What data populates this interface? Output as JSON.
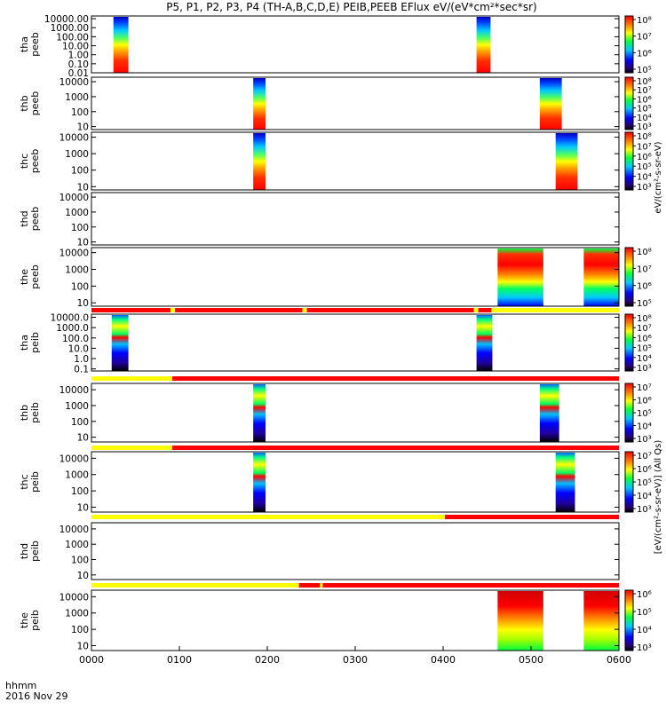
{
  "title": "P5, P1, P2, P3, P4 (TH-A,B,C,D,E) PEIB,PEEB EFlux eV/(eV*cm²*sec*sr)",
  "x_axis": {
    "label_line1": "hhmm",
    "label_line2": "2016 Nov 29",
    "ticks": [
      "0000",
      "0100",
      "0200",
      "0300",
      "0400",
      "0500",
      "0600"
    ],
    "range_hours": [
      0,
      6
    ]
  },
  "colors": {
    "red": "#ff0000",
    "yellow": "#ffff00",
    "black": "#000000",
    "white": "#ffffff"
  },
  "colorbar_titles": {
    "electrons": "eV/(cm²-s-sr-eV)",
    "ions": "[eV/(cm²-s-sr-eV)] (All Qs)"
  },
  "panels": [
    {
      "id": "tha-peeb",
      "label_top": "tha",
      "label_bottom": "peeb",
      "yticks": [
        "10000.00",
        "1000.00",
        "100.00",
        "10.00",
        "1.00",
        "0.10",
        "0.01"
      ],
      "ylog": [
        -2,
        4.3
      ],
      "colorbar": {
        "labels": [
          "10⁸",
          "10⁷",
          "10⁶",
          "10⁵"
        ]
      },
      "bursts": [
        {
          "start": 0.25,
          "end": 0.42
        },
        {
          "start": 4.38,
          "end": 4.54
        }
      ],
      "mode_bar": null
    },
    {
      "id": "thb-peeb",
      "label_top": "thb",
      "label_bottom": "peeb",
      "yticks": [
        "10000",
        "1000",
        "100",
        "10"
      ],
      "ylog": [
        0.8,
        4.3
      ],
      "colorbar": {
        "labels": [
          "10⁸",
          "10⁷",
          "10⁶",
          "10⁵",
          "10⁴",
          "10³"
        ]
      },
      "bursts": [
        {
          "start": 1.84,
          "end": 1.98
        },
        {
          "start": 5.1,
          "end": 5.35
        }
      ],
      "mode_bar": null
    },
    {
      "id": "thc-peeb",
      "label_top": "thc",
      "label_bottom": "peeb",
      "yticks": [
        "10000",
        "1000",
        "100",
        "10"
      ],
      "ylog": [
        0.8,
        4.3
      ],
      "colorbar": {
        "labels": [
          "10⁸",
          "10⁷",
          "10⁶",
          "10⁵",
          "10⁴",
          "10³"
        ]
      },
      "bursts": [
        {
          "start": 1.84,
          "end": 1.98
        },
        {
          "start": 5.28,
          "end": 5.53
        }
      ],
      "mode_bar": null
    },
    {
      "id": "thd-peeb",
      "label_top": "thd",
      "label_bottom": "peeb",
      "yticks": [
        "10000",
        "1000",
        "100",
        "10"
      ],
      "ylog": [
        0.8,
        4.3
      ],
      "colorbar": null,
      "bursts": [],
      "mode_bar": null
    },
    {
      "id": "the-peeb",
      "label_top": "the",
      "label_bottom": "peeb",
      "yticks": [
        "10000",
        "1000",
        "100",
        "10"
      ],
      "ylog": [
        0.8,
        4.3
      ],
      "colorbar": {
        "labels": [
          "10⁸",
          "10⁷",
          "10⁶",
          "10⁵"
        ]
      },
      "bursts": [
        {
          "start": 4.62,
          "end": 5.14
        },
        {
          "start": 5.6,
          "end": 6.0
        }
      ],
      "mode_bar": [
        {
          "start": 0.0,
          "end": 0.9,
          "color": "red"
        },
        {
          "start": 0.9,
          "end": 0.95,
          "color": "yellow"
        },
        {
          "start": 0.95,
          "end": 2.4,
          "color": "red"
        },
        {
          "start": 2.4,
          "end": 2.45,
          "color": "yellow"
        },
        {
          "start": 2.45,
          "end": 4.35,
          "color": "red"
        },
        {
          "start": 4.35,
          "end": 4.4,
          "color": "yellow"
        },
        {
          "start": 4.4,
          "end": 4.55,
          "color": "red"
        },
        {
          "start": 4.55,
          "end": 6.0,
          "color": "yellow"
        }
      ]
    },
    {
      "id": "tha-peib",
      "label_top": "tha",
      "label_bottom": "peib",
      "yticks": [
        "10000.0",
        "1000.0",
        "100.0",
        "10.0",
        "1.0",
        "0.1"
      ],
      "ylog": [
        -1.2,
        4.3
      ],
      "colorbar": {
        "labels": [
          "10⁸",
          "10⁷",
          "10⁶",
          "10⁵",
          "10⁴",
          "10³"
        ]
      },
      "bursts": [
        {
          "start": 0.23,
          "end": 0.42
        },
        {
          "start": 4.38,
          "end": 4.56
        }
      ],
      "mode_bar": [
        {
          "start": 0.0,
          "end": 0.92,
          "color": "yellow"
        },
        {
          "start": 0.92,
          "end": 6.0,
          "color": "red"
        }
      ]
    },
    {
      "id": "thb-peib",
      "label_top": "thb",
      "label_bottom": "peib",
      "yticks": [
        "10000",
        "1000",
        "100",
        "10"
      ],
      "ylog": [
        0.7,
        4.4
      ],
      "colorbar": {
        "labels": [
          "10⁷",
          "10⁶",
          "10⁵",
          "10⁴",
          "10³"
        ]
      },
      "bursts": [
        {
          "start": 1.84,
          "end": 1.98
        },
        {
          "start": 5.1,
          "end": 5.32
        }
      ],
      "mode_bar": [
        {
          "start": 0.0,
          "end": 0.92,
          "color": "yellow"
        },
        {
          "start": 0.92,
          "end": 6.0,
          "color": "red"
        }
      ]
    },
    {
      "id": "thc-peib",
      "label_top": "thc",
      "label_bottom": "peib",
      "yticks": [
        "10000",
        "1000",
        "100",
        "10"
      ],
      "ylog": [
        0.7,
        4.4
      ],
      "colorbar": {
        "labels": [
          "10⁷",
          "10⁶",
          "10⁵",
          "10⁴",
          "10³"
        ]
      },
      "bursts": [
        {
          "start": 1.84,
          "end": 1.98
        },
        {
          "start": 5.28,
          "end": 5.5
        }
      ],
      "mode_bar": [
        {
          "start": 0.0,
          "end": 4.02,
          "color": "yellow"
        },
        {
          "start": 4.02,
          "end": 6.0,
          "color": "red"
        }
      ]
    },
    {
      "id": "thd-peib",
      "label_top": "thd",
      "label_bottom": "peib",
      "yticks": [
        "10000",
        "1000",
        "100",
        "10"
      ],
      "ylog": [
        0.7,
        4.4
      ],
      "colorbar": null,
      "bursts": [],
      "mode_bar": [
        {
          "start": 0.0,
          "end": 2.36,
          "color": "yellow"
        },
        {
          "start": 2.36,
          "end": 2.6,
          "color": "red"
        },
        {
          "start": 2.6,
          "end": 2.63,
          "color": "yellow"
        },
        {
          "start": 2.63,
          "end": 6.0,
          "color": "red"
        }
      ]
    },
    {
      "id": "the-peib",
      "label_top": "the",
      "label_bottom": "peib",
      "yticks": [
        "10000",
        "1000",
        "100",
        "10"
      ],
      "ylog": [
        0.7,
        4.4
      ],
      "colorbar": {
        "labels": [
          "10⁶",
          "10⁵",
          "10⁴",
          "10³"
        ]
      },
      "bursts": [
        {
          "start": 4.62,
          "end": 5.14
        },
        {
          "start": 5.6,
          "end": 6.0
        }
      ],
      "mode_bar": null
    }
  ],
  "chart_data": {
    "type": "heatmap",
    "title": "P5, P1, P2, P3, P4 (TH-A,B,C,D,E) PEIB,PEEB EFlux eV/(eV*cm²*sec*sr)",
    "x": {
      "label": "hhmm",
      "date": "2016 Nov 29",
      "ticks": [
        "0000",
        "0100",
        "0200",
        "0300",
        "0400",
        "0500",
        "0600"
      ]
    },
    "series": [
      {
        "name": "tha peeb",
        "active_hhmm": [
          [
            "0015",
            "0025"
          ],
          [
            "0423",
            "0432"
          ]
        ]
      },
      {
        "name": "thb peeb",
        "active_hhmm": [
          [
            "0150",
            "0159"
          ],
          [
            "0506",
            "0521"
          ]
        ]
      },
      {
        "name": "thc peeb",
        "active_hhmm": [
          [
            "0150",
            "0159"
          ],
          [
            "0517",
            "0532"
          ]
        ]
      },
      {
        "name": "thd peeb",
        "active_hhmm": []
      },
      {
        "name": "the peeb",
        "active_hhmm": [
          [
            "0437",
            "0508"
          ],
          [
            "0536",
            "0600"
          ]
        ]
      },
      {
        "name": "tha peib",
        "active_hhmm": [
          [
            "0014",
            "0025"
          ],
          [
            "0423",
            "0434"
          ]
        ]
      },
      {
        "name": "thb peib",
        "active_hhmm": [
          [
            "0150",
            "0159"
          ],
          [
            "0506",
            "0519"
          ]
        ]
      },
      {
        "name": "thc peib",
        "active_hhmm": [
          [
            "0150",
            "0159"
          ],
          [
            "0517",
            "0530"
          ]
        ]
      },
      {
        "name": "thd peib",
        "active_hhmm": []
      },
      {
        "name": "the peib",
        "active_hhmm": [
          [
            "0437",
            "0508"
          ],
          [
            "0536",
            "0600"
          ]
        ]
      }
    ],
    "ylog": true,
    "grid": false,
    "colorscale": "rainbow"
  }
}
